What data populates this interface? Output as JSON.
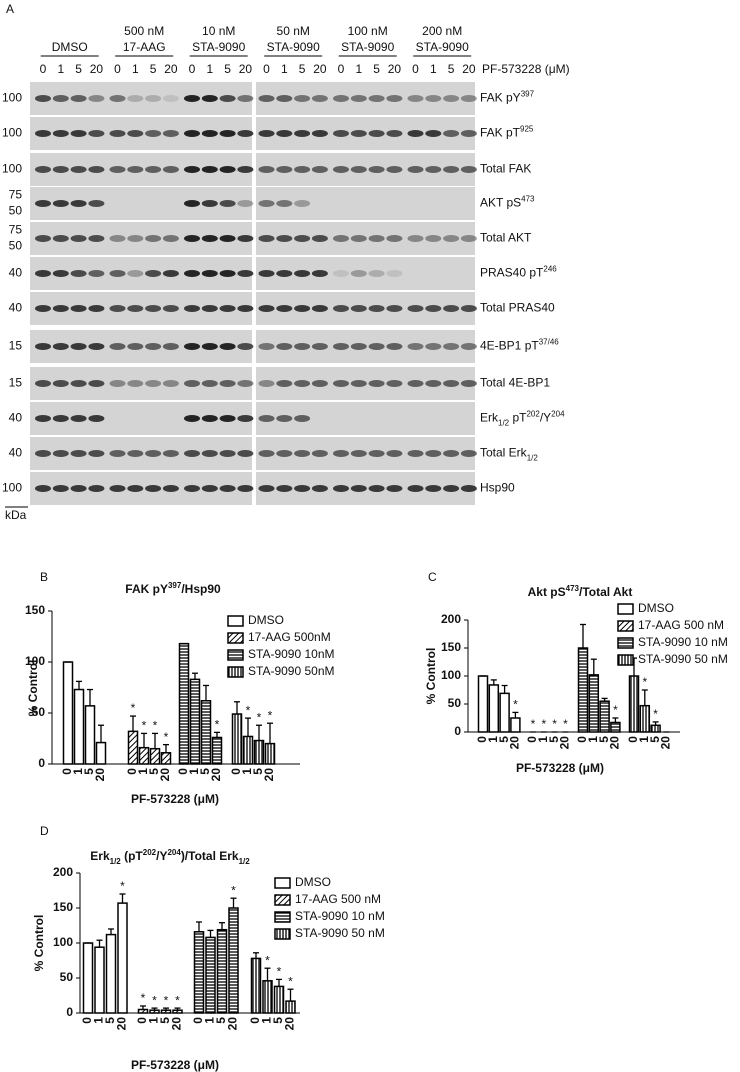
{
  "blot": {
    "panel": "A",
    "groups": [
      {
        "lines": [
          "DMSO"
        ]
      },
      {
        "lines": [
          "500 nM",
          "17-AAG"
        ]
      },
      {
        "lines": [
          "10 nM",
          "STA-9090"
        ]
      },
      {
        "lines": [
          "50 nM",
          "STA-9090"
        ]
      },
      {
        "lines": [
          "100 nM",
          "STA-9090"
        ]
      },
      {
        "lines": [
          "200 nM",
          "STA-9090"
        ]
      }
    ],
    "doses": [
      "0",
      "1",
      "5",
      "20"
    ],
    "compound": "PF-573228 (μM)",
    "rows": [
      {
        "markers": [
          "100"
        ],
        "label": [
          {
            "t": "FAK pY"
          },
          {
            "sup": "397"
          }
        ]
      },
      {
        "markers": [
          "100"
        ],
        "label": [
          {
            "t": "FAK pT"
          },
          {
            "sup": "925"
          }
        ]
      },
      {
        "markers": [
          "100"
        ],
        "label": [
          {
            "t": "Total FAK"
          }
        ]
      },
      {
        "markers": [
          "75",
          "50"
        ],
        "label": [
          {
            "t": "AKT pS"
          },
          {
            "sup": "473"
          }
        ]
      },
      {
        "markers": [
          "75",
          "50"
        ],
        "label": [
          {
            "t": "Total AKT"
          }
        ]
      },
      {
        "markers": [
          "40"
        ],
        "label": [
          {
            "t": "PRAS40 pT"
          },
          {
            "sup": "246"
          }
        ]
      },
      {
        "markers": [
          "40"
        ],
        "label": [
          {
            "t": "Total PRAS40"
          }
        ]
      },
      {
        "markers": [
          "15"
        ],
        "label": [
          {
            "t": "4E-BP1 pT"
          },
          {
            "sup": "37/46"
          }
        ]
      },
      {
        "markers": [
          "15"
        ],
        "label": [
          {
            "t": "Total 4E-BP1"
          }
        ]
      },
      {
        "markers": [
          "40"
        ],
        "label": [
          {
            "t": "Erk"
          },
          {
            "sub": "1/2"
          },
          {
            "t": " pT"
          },
          {
            "sup": "202"
          },
          {
            "t": "/Y"
          },
          {
            "sup": "204"
          }
        ]
      },
      {
        "markers": [
          "40"
        ],
        "label": [
          {
            "t": "Total Erk"
          },
          {
            "sub": "1/2"
          }
        ]
      },
      {
        "markers": [
          "100"
        ],
        "label": [
          {
            "t": "Hsp90"
          }
        ]
      }
    ],
    "unit": "kDa"
  },
  "chart_data": [
    {
      "type": "bar",
      "panel": "B",
      "title": [
        {
          "t": "FAK pY"
        },
        {
          "sup": "397"
        },
        {
          "t": "/Hsp90"
        }
      ],
      "y_label": "% Control",
      "x_label": "PF-573228 (μM)",
      "categories": [
        "0",
        "1",
        "5",
        "20"
      ],
      "ylim": [
        0,
        150
      ],
      "yticks": [
        0,
        50,
        100,
        150
      ],
      "series": [
        {
          "name": "DMSO",
          "color": "#000000",
          "pattern": "none",
          "values": [
            100,
            73,
            57,
            21
          ],
          "errors": [
            0,
            8,
            16,
            17
          ],
          "stars": [
            null,
            null,
            null,
            null
          ]
        },
        {
          "name": "17-AAG 500nM",
          "color": "#000000",
          "pattern": "diagonal",
          "values": [
            32,
            16,
            15,
            11
          ],
          "errors": [
            15,
            14,
            15,
            8
          ],
          "stars": [
            "*",
            "*",
            "*",
            "*"
          ]
        },
        {
          "name": "STA-9090 10nM",
          "color": "#000000",
          "pattern": "horizontal",
          "values": [
            118,
            83,
            62,
            26
          ],
          "errors": [
            0,
            6,
            15,
            5
          ],
          "stars": [
            null,
            null,
            null,
            "*"
          ]
        },
        {
          "name": "STA-9090 50nM",
          "color": "#000000",
          "pattern": "vertical",
          "values": [
            49,
            27,
            23,
            20
          ],
          "errors": [
            12,
            18,
            15,
            20
          ],
          "stars": [
            null,
            "*",
            "*",
            "*"
          ]
        }
      ]
    },
    {
      "type": "bar",
      "panel": "C",
      "title": [
        {
          "t": "Akt pS"
        },
        {
          "sup": "473"
        },
        {
          "t": "/Total Akt"
        }
      ],
      "y_label": "% Control",
      "x_label": "PF-573228 (μM)",
      "categories": [
        "0",
        "1",
        "5",
        "20"
      ],
      "ylim": [
        0,
        200
      ],
      "yticks": [
        0,
        50,
        100,
        150,
        200
      ],
      "series": [
        {
          "name": "DMSO",
          "color": "#000000",
          "pattern": "none",
          "values": [
            100,
            84,
            69,
            25
          ],
          "errors": [
            0,
            9,
            14,
            10
          ],
          "stars": [
            null,
            null,
            null,
            "*"
          ]
        },
        {
          "name": "17-AAG 500 nM",
          "color": "#000000",
          "pattern": "diagonal",
          "values": [
            0,
            0,
            0,
            0
          ],
          "errors": [
            0,
            0,
            0,
            0
          ],
          "stars": [
            "*",
            "*",
            "*",
            "*"
          ]
        },
        {
          "name": "STA-9090 10 nM",
          "color": "#000000",
          "pattern": "horizontal",
          "values": [
            150,
            102,
            55,
            17
          ],
          "errors": [
            42,
            28,
            5,
            8
          ],
          "stars": [
            null,
            null,
            null,
            "*"
          ]
        },
        {
          "name": "STA-9090 50 nM",
          "color": "#000000",
          "pattern": "vertical",
          "values": [
            100,
            47,
            12,
            0
          ],
          "errors": [
            32,
            28,
            6,
            0
          ],
          "stars": [
            null,
            "*",
            "*",
            null
          ]
        }
      ]
    },
    {
      "type": "bar",
      "panel": "D",
      "title": [
        {
          "t": "Erk"
        },
        {
          "sub": "1/2"
        },
        {
          "t": " (pT"
        },
        {
          "sup": "202"
        },
        {
          "t": "/Y"
        },
        {
          "sup": "204"
        },
        {
          "t": ")/Total Erk"
        },
        {
          "sub": "1/2"
        }
      ],
      "y_label": "% Control",
      "x_label": "PF-573228 (μM)",
      "categories": [
        "0",
        "1",
        "5",
        "20"
      ],
      "ylim": [
        0,
        200
      ],
      "yticks": [
        0,
        50,
        100,
        150,
        200
      ],
      "series": [
        {
          "name": "DMSO",
          "color": "#000000",
          "pattern": "none",
          "values": [
            100,
            94,
            112,
            157
          ],
          "errors": [
            0,
            10,
            8,
            13
          ],
          "stars": [
            null,
            null,
            null,
            "*"
          ]
        },
        {
          "name": "17-AAG 500 nM",
          "color": "#000000",
          "pattern": "diagonal",
          "values": [
            5,
            4,
            4,
            4
          ],
          "errors": [
            5,
            3,
            3,
            3
          ],
          "stars": [
            "*",
            "*",
            "*",
            "*"
          ]
        },
        {
          "name": "STA-9090 10 nM",
          "color": "#000000",
          "pattern": "horizontal",
          "values": [
            116,
            108,
            119,
            150
          ],
          "errors": [
            14,
            10,
            10,
            14
          ],
          "stars": [
            null,
            null,
            null,
            "*"
          ]
        },
        {
          "name": "STA-9090 50 nM",
          "color": "#000000",
          "pattern": "vertical",
          "values": [
            78,
            46,
            38,
            17
          ],
          "errors": [
            8,
            18,
            10,
            17
          ],
          "stars": [
            null,
            "*",
            "*",
            "*"
          ]
        }
      ]
    }
  ]
}
